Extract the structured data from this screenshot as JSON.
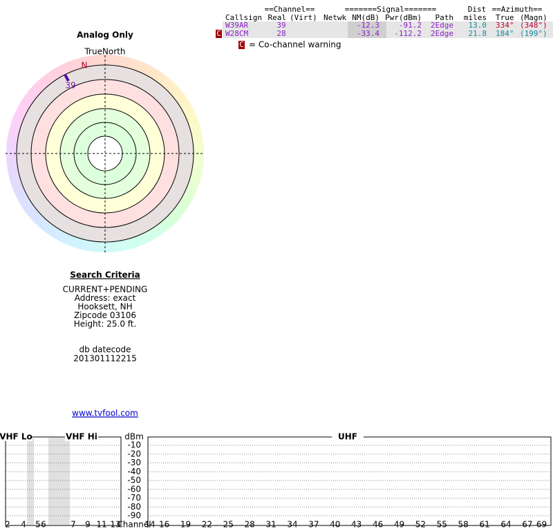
{
  "polar": {
    "title": "Analog Only",
    "north_label": "TrueNorth",
    "n_label": "N",
    "marker_label": "39"
  },
  "table": {
    "group_headers": {
      "channel": "==Channel==",
      "signal": "=======Signal=======",
      "dist": "Dist",
      "azimuth": "==Azimuth=="
    },
    "headers": {
      "callsign": "Callsign",
      "real": "Real",
      "virt": "(Virt)",
      "netwk": "Netwk",
      "nm": "NM(dB)",
      "pwr": "Pwr(dBm)",
      "path": "Path",
      "miles": "miles",
      "true_az": "True",
      "magn_az": "(Magn)"
    },
    "rows": [
      {
        "callsign": "W39AR",
        "real": "39",
        "nm": "-12.3",
        "pwr": "-91.2",
        "path": "2Edge",
        "dist": "13.0",
        "true_az": "334°",
        "magn_az": "(348°)"
      },
      {
        "flag": "C",
        "callsign": "W28CM",
        "real": "28",
        "nm": "-33.4",
        "pwr": "-112.2",
        "path": "2Edge",
        "dist": "21.8",
        "true_az": "184°",
        "magn_az": "(199°)"
      }
    ],
    "legend": {
      "flag": "C",
      "text": "= Co-channel warning"
    }
  },
  "search": {
    "heading": "Search Criteria",
    "lines": [
      "CURRENT+PENDING",
      "Address: exact",
      "Hooksett, NH",
      "Zipcode 03106",
      "Height: 25.0 ft."
    ],
    "datecode_label": "db datecode",
    "datecode": "201301112215",
    "link": "www.tvfool.com"
  },
  "spectrum": {
    "vhf_lo": "VHF Lo",
    "vhf_hi": "VHF Hi",
    "unit": "dBm",
    "uhf": "UHF",
    "channel_label": "Channel",
    "dbm_ticks": [
      "-10",
      "-20",
      "-30",
      "-40",
      "-50",
      "-60",
      "-70",
      "-80",
      "-90"
    ],
    "vhf_channels": [
      "2",
      "4",
      "5",
      "6",
      "7",
      "9",
      "11",
      "13"
    ],
    "uhf_channels": [
      "14",
      "16",
      "19",
      "22",
      "25",
      "28",
      "31",
      "34",
      "37",
      "40",
      "43",
      "46",
      "49",
      "52",
      "55",
      "58",
      "61",
      "64",
      "67",
      "69"
    ]
  }
}
